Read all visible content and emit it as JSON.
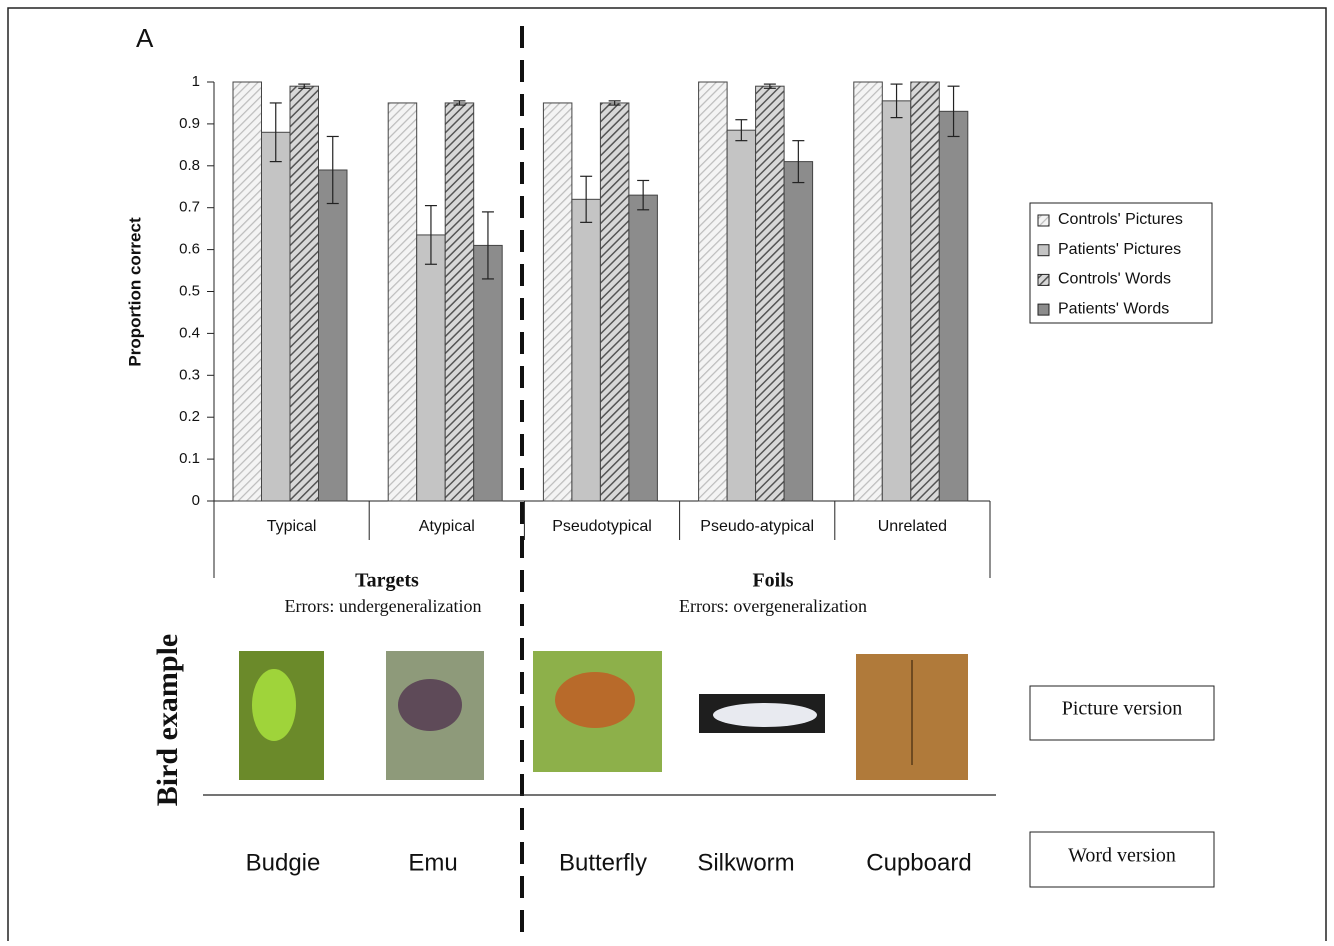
{
  "chart_data": {
    "type": "bar",
    "panel_label": "A",
    "ylabel": "Proportion correct",
    "categories": [
      "Typical",
      "Atypical",
      "Pseudotypical",
      "Pseudo-atypical",
      "Unrelated"
    ],
    "series": [
      {
        "name": "Controls' Pictures",
        "color": "#e6e6e6",
        "hatch": true,
        "values": [
          1.0,
          0.95,
          0.95,
          1.0,
          1.0
        ]
      },
      {
        "name": "Patients' Pictures",
        "color": "#c4c4c4",
        "hatch": false,
        "values": [
          0.88,
          0.635,
          0.72,
          0.885,
          0.955
        ],
        "errors": [
          0.07,
          0.07,
          0.055,
          0.025,
          0.04
        ]
      },
      {
        "name": "Controls' Words",
        "color": "#777777",
        "hatch": true,
        "values": [
          0.99,
          0.95,
          0.95,
          0.99,
          1.0
        ],
        "errors": [
          0.005,
          0.005,
          0.005,
          0.005,
          null
        ]
      },
      {
        "name": "Patients' Words",
        "color": "#8c8c8c",
        "hatch": false,
        "values": [
          0.79,
          0.61,
          0.73,
          0.81,
          0.93
        ],
        "errors": [
          0.08,
          0.08,
          0.035,
          0.05,
          0.06
        ]
      }
    ],
    "ylim": [
      0,
      1
    ],
    "yticks": [
      0,
      0.1,
      0.2,
      0.3,
      0.4,
      0.5,
      0.6,
      0.7,
      0.8,
      0.9,
      1
    ],
    "groups": [
      {
        "label": "Targets",
        "sublabel": "Errors: undergeneralization"
      },
      {
        "label": "Foils",
        "sublabel": "Errors: overgeneralization"
      }
    ],
    "legend": "right"
  },
  "example": {
    "label": "Bird example",
    "items": [
      "Budgie",
      "Emu",
      "Butterfly",
      "Silkworm",
      "Cupboard"
    ],
    "picture_label": "Picture version",
    "word_label": "Word version"
  }
}
